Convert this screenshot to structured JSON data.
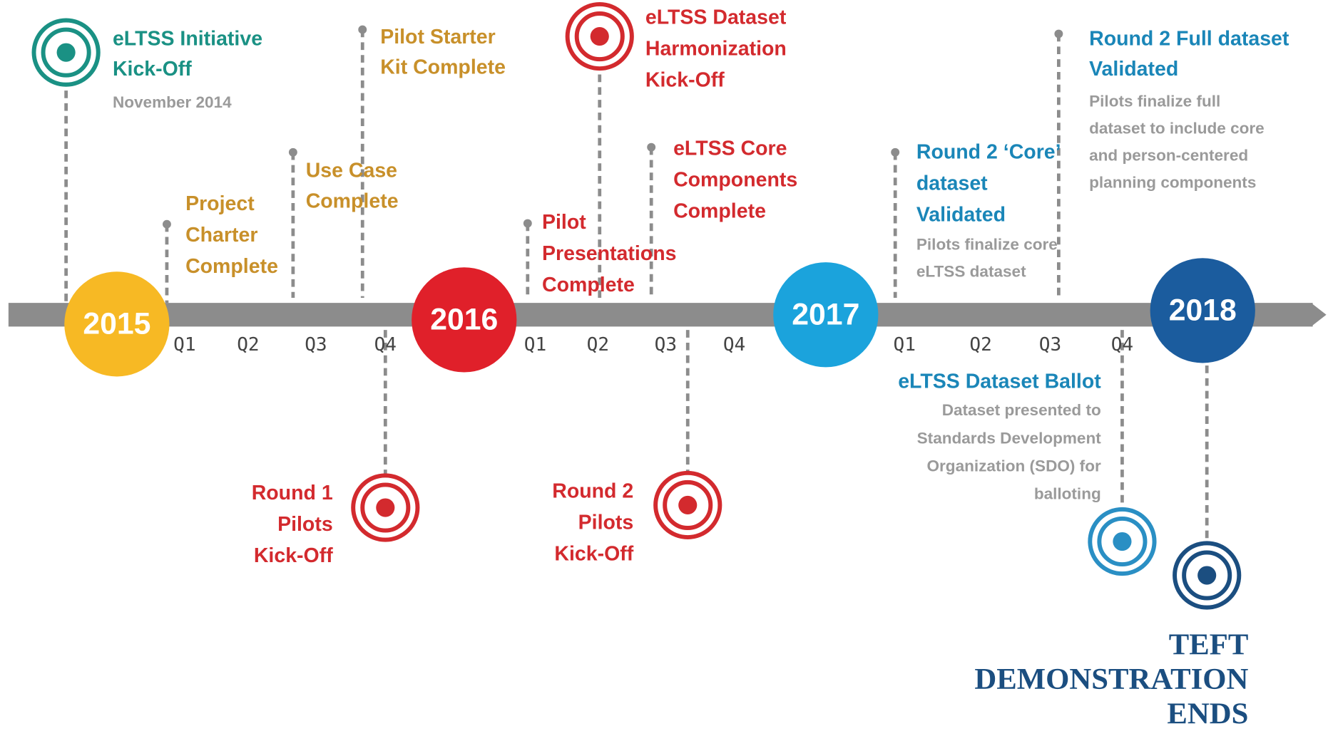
{
  "years": [
    "2015",
    "2016",
    "2017",
    "2018"
  ],
  "quarters": [
    "Q1",
    "Q2",
    "Q3",
    "Q4",
    "Q1",
    "Q2",
    "Q3",
    "Q4",
    "Q1",
    "Q2",
    "Q3",
    "Q4"
  ],
  "milestones": [
    {
      "title": [
        "eLTSS Initiative",
        "Kick-Off"
      ],
      "note": [
        "November 2014"
      ]
    },
    {
      "title": [
        "Project",
        "Charter",
        "Complete"
      ]
    },
    {
      "title": [
        "Use Case",
        "Complete"
      ]
    },
    {
      "title": [
        "Pilot Starter",
        "Kit Complete"
      ]
    },
    {
      "title": [
        "Round  1",
        "Pilots",
        "Kick-Off"
      ]
    },
    {
      "title": [
        "eLTSS Dataset",
        "Harmonization",
        "Kick-Off"
      ]
    },
    {
      "title": [
        "Pilot",
        "Presentations",
        "Complete"
      ]
    },
    {
      "title": [
        "Round 2",
        "Pilots",
        "Kick-Off"
      ]
    },
    {
      "title": [
        "eLTSS Core",
        "Components",
        "Complete"
      ]
    },
    {
      "title": [
        "Round 2 ‘Core’",
        "dataset",
        "Validated"
      ],
      "note": [
        "Pilots finalize core",
        "eLTSS dataset"
      ]
    },
    {
      "title": [
        "Round 2 Full dataset",
        "Validated"
      ],
      "note": [
        "Pilots finalize full",
        "dataset to include core",
        "and person-centered",
        "planning components"
      ]
    },
    {
      "title": [
        "eLTSS Dataset Ballot"
      ],
      "note": [
        "Dataset presented to",
        "Standards Development",
        "Organization (SDO) for",
        "balloting"
      ]
    },
    {
      "title": [
        "TEFT",
        "DEMONSTRATION",
        "ENDS"
      ]
    }
  ]
}
